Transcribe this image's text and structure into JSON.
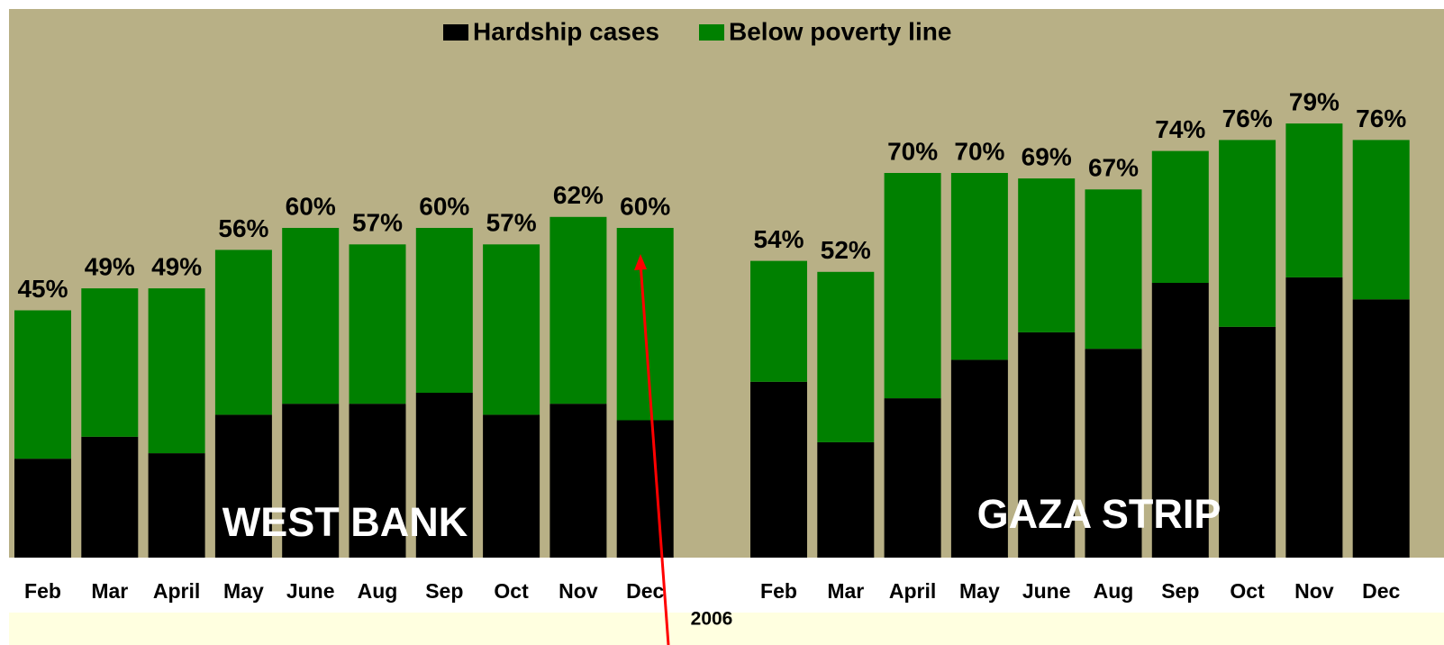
{
  "chart_data": [
    {
      "type": "stacked_bar",
      "title": "WEST BANK",
      "categories": [
        "Feb",
        "Mar",
        "April",
        "May",
        "June",
        "Aug",
        "Sep",
        "Oct",
        "Nov",
        "Dec"
      ],
      "series": [
        {
          "name": "Hardship cases",
          "color": "#000000",
          "values": [
            18,
            22,
            19,
            26,
            28,
            28,
            30,
            26,
            28,
            25
          ]
        },
        {
          "name": "Below poverty line",
          "color": "#008000",
          "values": [
            27,
            27,
            30,
            30,
            32,
            29,
            30,
            31,
            34,
            35
          ]
        }
      ],
      "totals": [
        45,
        49,
        49,
        56,
        60,
        57,
        60,
        57,
        62,
        60
      ],
      "total_labels": [
        "45%",
        "49%",
        "49%",
        "56%",
        "60%",
        "57%",
        "60%",
        "57%",
        "62%",
        "60%"
      ],
      "ylim": [
        0,
        100
      ]
    },
    {
      "type": "stacked_bar",
      "title": "GAZA STRIP",
      "categories": [
        "Feb",
        "Mar",
        "April",
        "May",
        "June",
        "Aug",
        "Sep",
        "Oct",
        "Nov",
        "Dec"
      ],
      "series": [
        {
          "name": "Hardship cases",
          "color": "#000000",
          "values": [
            32,
            21,
            29,
            36,
            41,
            38,
            50,
            42,
            51,
            47
          ]
        },
        {
          "name": "Below poverty line",
          "color": "#008000",
          "values": [
            22,
            31,
            41,
            34,
            28,
            29,
            24,
            34,
            28,
            29
          ]
        }
      ],
      "totals": [
        54,
        52,
        70,
        70,
        69,
        67,
        74,
        76,
        79,
        76
      ],
      "total_labels": [
        "54%",
        "52%",
        "70%",
        "70%",
        "69%",
        "67%",
        "74%",
        "76%",
        "79%",
        "76%"
      ],
      "ylim": [
        0,
        100
      ]
    }
  ],
  "x_label": "2006"
}
